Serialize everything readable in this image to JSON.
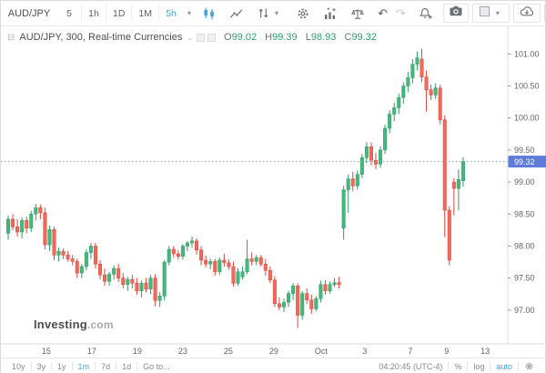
{
  "toolbar": {
    "symbol": "AUD/JPY",
    "intervals": [
      {
        "label": "5",
        "active": false
      },
      {
        "label": "1h",
        "active": false
      },
      {
        "label": "1D",
        "active": false
      },
      {
        "label": "1M",
        "active": false
      },
      {
        "label": "5h",
        "active": true
      }
    ]
  },
  "icons": {
    "interval_caret": "▾",
    "style_caret": "▾",
    "layout_caret": "▾",
    "undo": "↶",
    "redo": "↷",
    "legend_collapse": "⊟",
    "legend_caret": "⌄"
  },
  "legend": {
    "title": "AUD/JPY, 300, Real-time Currencies",
    "o_label": "O",
    "o_value": "99.02",
    "h_label": "H",
    "h_value": "99.39",
    "l_label": "L",
    "l_value": "98.93",
    "c_label": "C",
    "c_value": "99.32"
  },
  "watermark": {
    "brand": "Investing",
    "suffix": ".com"
  },
  "footer": {
    "ranges": [
      "10y",
      "3y",
      "1y",
      "1m",
      "7d",
      "1d"
    ],
    "active_range": "1m",
    "goto": "Go to...",
    "clock": "04:20:45 (UTC-4)",
    "percent": "%",
    "log": "log",
    "auto": "auto"
  },
  "chart_data": {
    "type": "candlestick",
    "symbol": "AUD/JPY",
    "interval_minutes": 300,
    "title": "AUD/JPY, 300, Real-time Currencies",
    "last_price": 99.32,
    "last_price_label": "99.32",
    "ylim": [
      96.45,
      101.4
    ],
    "grid": false,
    "y_ticks": [
      101.0,
      100.5,
      100.0,
      99.5,
      99.0,
      98.5,
      98.0,
      97.5,
      97.0
    ],
    "x_ticks": [
      {
        "label": "15",
        "i": 8.3
      },
      {
        "label": "17",
        "i": 18.2
      },
      {
        "label": "19",
        "i": 28.1
      },
      {
        "label": "23",
        "i": 38.0
      },
      {
        "label": "25",
        "i": 47.9
      },
      {
        "label": "29",
        "i": 57.8
      },
      {
        "label": "Oct",
        "i": 68.1
      },
      {
        "label": "3",
        "i": 77.6
      },
      {
        "label": "7",
        "i": 87.5
      },
      {
        "label": "9",
        "i": 95.4
      },
      {
        "label": "13",
        "i": 103.8
      }
    ],
    "ohlc": [
      [
        98.2,
        98.48,
        98.1,
        98.42
      ],
      [
        98.42,
        98.5,
        98.25,
        98.3
      ],
      [
        98.3,
        98.42,
        98.15,
        98.22
      ],
      [
        98.22,
        98.45,
        98.12,
        98.4
      ],
      [
        98.4,
        98.46,
        98.2,
        98.28
      ],
      [
        98.28,
        98.55,
        98.22,
        98.5
      ],
      [
        98.5,
        98.66,
        98.4,
        98.6
      ],
      [
        98.6,
        98.65,
        98.42,
        98.52
      ],
      [
        98.52,
        98.6,
        97.95,
        98.02
      ],
      [
        98.02,
        98.32,
        97.92,
        98.26
      ],
      [
        98.26,
        98.3,
        97.78,
        97.86
      ],
      [
        97.86,
        97.98,
        97.76,
        97.92
      ],
      [
        97.92,
        97.96,
        97.8,
        97.86
      ],
      [
        97.86,
        97.92,
        97.76,
        97.8
      ],
      [
        97.8,
        97.86,
        97.7,
        97.76
      ],
      [
        97.76,
        97.8,
        97.5,
        97.58
      ],
      [
        97.58,
        97.72,
        97.5,
        97.68
      ],
      [
        97.68,
        97.95,
        97.62,
        97.9
      ],
      [
        97.9,
        98.05,
        97.8,
        98.0
      ],
      [
        98.0,
        98.05,
        97.65,
        97.72
      ],
      [
        97.72,
        97.78,
        97.48,
        97.55
      ],
      [
        97.55,
        97.65,
        97.38,
        97.45
      ],
      [
        97.45,
        97.6,
        97.38,
        97.56
      ],
      [
        97.56,
        97.7,
        97.48,
        97.65
      ],
      [
        97.65,
        97.72,
        97.44,
        97.5
      ],
      [
        97.5,
        97.58,
        97.34,
        97.4
      ],
      [
        97.4,
        97.52,
        97.3,
        97.48
      ],
      [
        97.48,
        97.55,
        97.34,
        97.42
      ],
      [
        97.42,
        97.5,
        97.24,
        97.3
      ],
      [
        97.3,
        97.46,
        97.2,
        97.42
      ],
      [
        97.42,
        97.5,
        97.28,
        97.33
      ],
      [
        97.33,
        97.55,
        97.25,
        97.5
      ],
      [
        97.5,
        97.56,
        97.06,
        97.15
      ],
      [
        97.15,
        97.28,
        97.05,
        97.22
      ],
      [
        97.22,
        97.78,
        97.15,
        97.75
      ],
      [
        97.75,
        98.0,
        97.7,
        97.95
      ],
      [
        97.95,
        98.0,
        97.82,
        97.88
      ],
      [
        97.88,
        97.94,
        97.79,
        97.84
      ],
      [
        97.84,
        98.03,
        97.79,
        98.0
      ],
      [
        98.0,
        98.08,
        97.92,
        98.05
      ],
      [
        98.05,
        98.15,
        97.97,
        98.08
      ],
      [
        98.08,
        98.12,
        97.87,
        97.94
      ],
      [
        97.94,
        98.0,
        97.7,
        97.78
      ],
      [
        97.78,
        97.85,
        97.67,
        97.72
      ],
      [
        97.72,
        97.8,
        97.64,
        97.76
      ],
      [
        97.76,
        97.8,
        97.54,
        97.6
      ],
      [
        97.6,
        97.82,
        97.55,
        97.78
      ],
      [
        97.78,
        97.88,
        97.68,
        97.74
      ],
      [
        97.74,
        97.8,
        97.63,
        97.68
      ],
      [
        97.68,
        97.76,
        97.37,
        97.42
      ],
      [
        97.42,
        97.65,
        97.38,
        97.6
      ],
      [
        97.52,
        97.68,
        97.48,
        97.6
      ],
      [
        97.6,
        98.1,
        97.56,
        97.8
      ],
      [
        97.8,
        97.9,
        97.7,
        97.76
      ],
      [
        97.76,
        97.86,
        97.7,
        97.82
      ],
      [
        97.82,
        97.86,
        97.68,
        97.72
      ],
      [
        97.72,
        97.8,
        97.54,
        97.62
      ],
      [
        97.62,
        97.68,
        97.42,
        97.47
      ],
      [
        97.47,
        97.53,
        97.05,
        97.1
      ],
      [
        97.1,
        97.2,
        97.0,
        97.05
      ],
      [
        97.05,
        97.18,
        96.97,
        97.12
      ],
      [
        97.12,
        97.3,
        97.05,
        97.26
      ],
      [
        97.26,
        97.42,
        97.16,
        97.38
      ],
      [
        97.38,
        97.42,
        96.72,
        96.92
      ],
      [
        96.92,
        97.3,
        96.85,
        97.26
      ],
      [
        97.26,
        97.34,
        97.1,
        97.16
      ],
      [
        97.16,
        97.24,
        96.94,
        97.02
      ],
      [
        97.02,
        97.22,
        96.98,
        97.18
      ],
      [
        97.18,
        97.46,
        97.12,
        97.4
      ],
      [
        97.4,
        97.47,
        97.24,
        97.3
      ],
      [
        97.3,
        97.45,
        97.26,
        97.4
      ],
      [
        97.4,
        97.5,
        97.36,
        97.43
      ],
      [
        97.43,
        97.52,
        97.34,
        97.4
      ],
      [
        98.28,
        98.94,
        98.1,
        98.88
      ],
      [
        98.88,
        99.12,
        98.52,
        99.05
      ],
      [
        99.05,
        99.16,
        98.86,
        98.94
      ],
      [
        98.94,
        99.18,
        98.88,
        99.12
      ],
      [
        99.12,
        99.44,
        99.06,
        99.38
      ],
      [
        99.38,
        99.62,
        99.3,
        99.55
      ],
      [
        99.55,
        99.62,
        99.26,
        99.34
      ],
      [
        99.34,
        99.46,
        99.2,
        99.28
      ],
      [
        99.28,
        99.56,
        99.22,
        99.5
      ],
      [
        99.5,
        99.9,
        99.44,
        99.84
      ],
      [
        99.84,
        100.12,
        99.76,
        100.06
      ],
      [
        100.06,
        100.24,
        99.95,
        100.16
      ],
      [
        100.16,
        100.38,
        100.06,
        100.32
      ],
      [
        100.32,
        100.56,
        100.22,
        100.5
      ],
      [
        100.5,
        100.72,
        100.4,
        100.63
      ],
      [
        100.63,
        100.92,
        100.54,
        100.84
      ],
      [
        100.84,
        101.04,
        100.74,
        100.94
      ],
      [
        100.92,
        101.08,
        100.56,
        100.64
      ],
      [
        100.64,
        100.74,
        100.1,
        100.44
      ],
      [
        100.44,
        100.52,
        100.28,
        100.36
      ],
      [
        100.36,
        100.54,
        100.3,
        100.47
      ],
      [
        100.47,
        100.52,
        99.9,
        99.97
      ],
      [
        99.97,
        100.04,
        98.14,
        98.56
      ],
      [
        98.56,
        98.62,
        97.7,
        97.78
      ],
      [
        99.0,
        99.06,
        98.48,
        98.9
      ],
      [
        98.9,
        99.2,
        98.56,
        99.04
      ],
      [
        99.02,
        99.39,
        98.93,
        99.32
      ]
    ],
    "colors": {
      "up": "#44b77f",
      "up_border": "#2e9d62",
      "down": "#ef6a5a",
      "down_border": "#e0443a",
      "last_line": "#7f9bea",
      "badge": "#5d7bd9",
      "axis_text": "#5f6369",
      "axis_line": "#d7d9dd"
    }
  }
}
